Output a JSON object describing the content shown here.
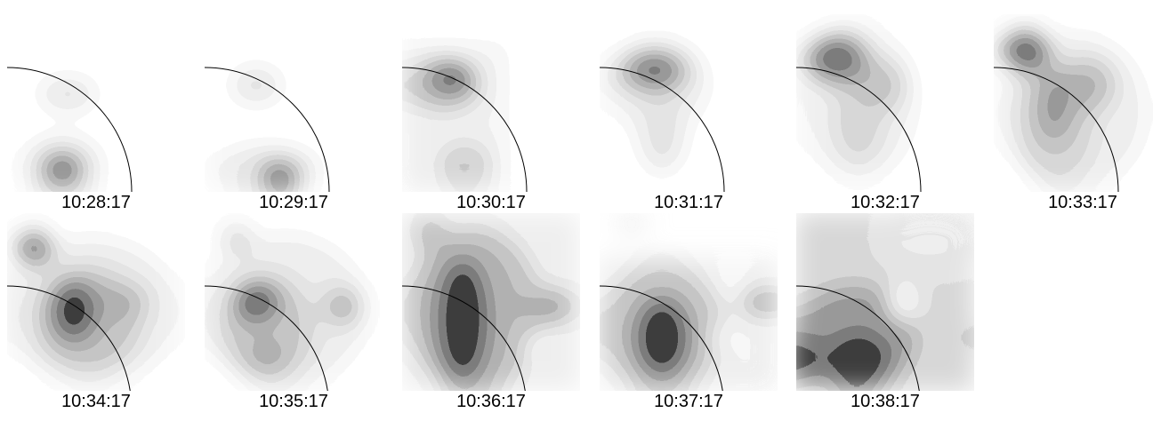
{
  "frames": [
    {
      "time": "10:28:17"
    },
    {
      "time": "10:29:17"
    },
    {
      "time": "10:30:17"
    },
    {
      "time": "10:31:17"
    },
    {
      "time": "10:32:17"
    },
    {
      "time": "10:33:17"
    },
    {
      "time": "10:34:17"
    },
    {
      "time": "10:35:17"
    },
    {
      "time": "10:36:17"
    },
    {
      "time": "10:37:17"
    },
    {
      "time": "10:38:17"
    }
  ]
}
